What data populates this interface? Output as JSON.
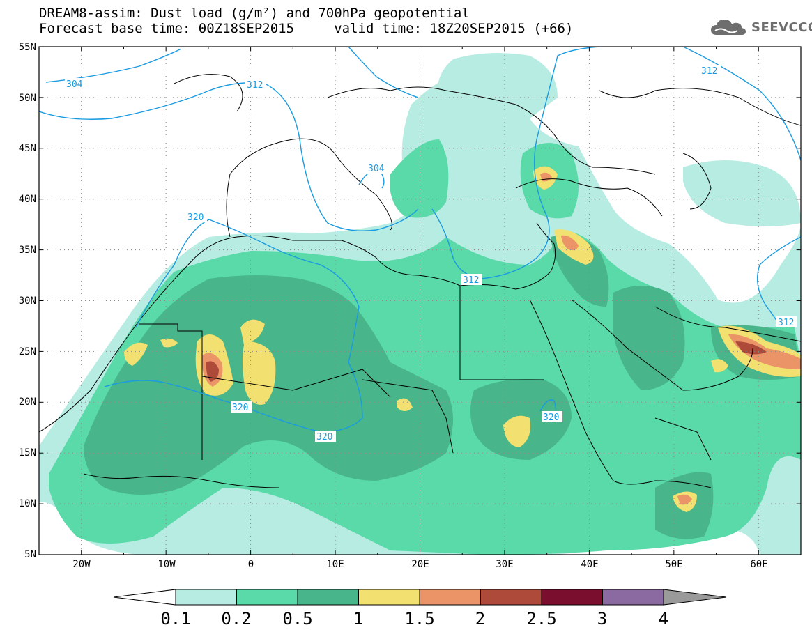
{
  "header": {
    "title_line1": "DREAM8-assim: Dust load (g/m²) and 700hPa geopotential",
    "title_line2": "Forecast base time: 00Z18SEP2015     valid time: 18Z20SEP2015 (+66)",
    "logo_text": "SEEVCCC",
    "logo_icon": "cloud-logo-icon"
  },
  "map": {
    "lon_range": [
      -25,
      65
    ],
    "lat_range": [
      5,
      55
    ],
    "lat_labels": [
      "55N",
      "50N",
      "45N",
      "40N",
      "35N",
      "30N",
      "25N",
      "20N",
      "15N",
      "10N",
      "5N"
    ],
    "lon_labels": [
      "20W",
      "10W",
      "0",
      "10E",
      "20E",
      "30E",
      "40E",
      "50E",
      "60E"
    ],
    "grid": "dotted",
    "contour_color": "#1a9be0",
    "contour_labels": [
      "304",
      "312",
      "304",
      "320",
      "320",
      "320",
      "312",
      "320",
      "312",
      "312"
    ]
  },
  "colorbar": {
    "levels": [
      "0.1",
      "0.2",
      "0.5",
      "1",
      "1.5",
      "2",
      "2.5",
      "3",
      "4"
    ],
    "colors": [
      "#b7ece3",
      "#5ad9a9",
      "#48b58a",
      "#f2e070",
      "#ea9468",
      "#ad4a3a",
      "#7a0e2e",
      "#8a6aa0",
      "#9a9a9a"
    ]
  }
}
